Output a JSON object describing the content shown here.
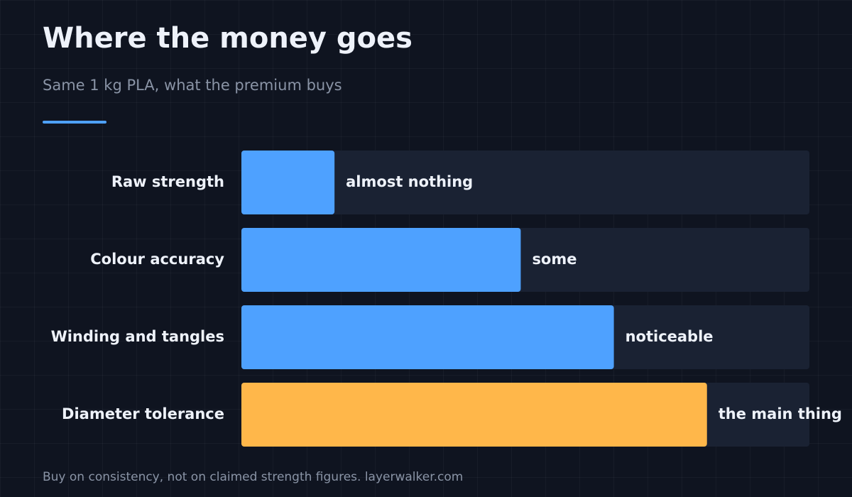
{
  "chart_data": {
    "type": "hbar",
    "title": "Where the money goes",
    "subtitle": "Same 1 kg PLA, what the premium buys",
    "categories": [
      "Raw strength",
      "Colour accuracy",
      "Winding and tangles",
      "Diameter tolerance"
    ],
    "values": [
      1,
      3,
      4,
      5
    ],
    "value_labels": [
      "almost nothing",
      "some",
      "noticeable",
      "the main thing"
    ],
    "colors": [
      "#4ea1ff",
      "#4ea1ff",
      "#4ea1ff",
      "#ffb74a"
    ],
    "xlim": [
      0,
      6.1
    ],
    "footnote": "Buy on consistency, not on claimed strength figures. layerwalker.com"
  }
}
